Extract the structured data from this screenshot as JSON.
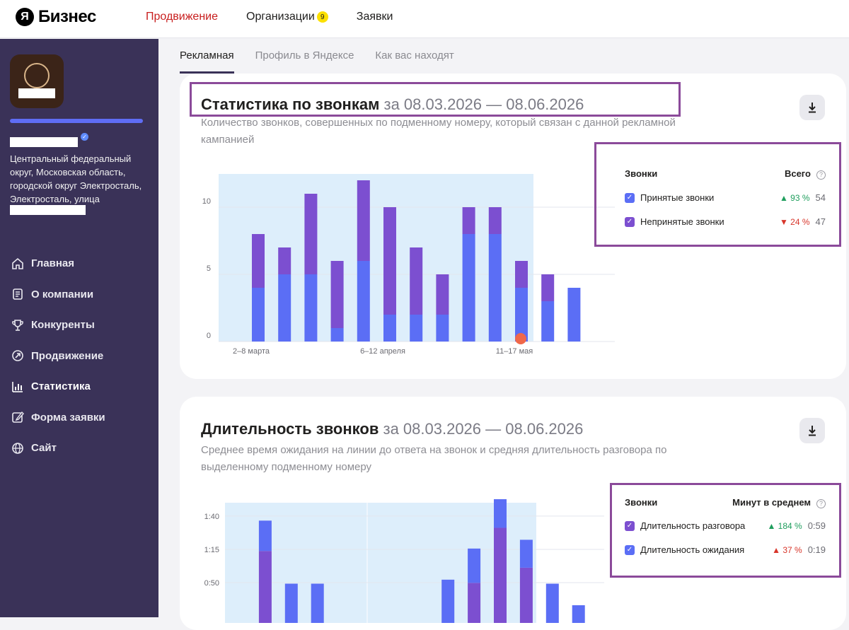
{
  "header": {
    "logo_letter": "Я",
    "logo_text": "Бизнес",
    "nav": [
      {
        "label": "Продвижение",
        "active": true
      },
      {
        "label": "Организации",
        "badge": "9"
      },
      {
        "label": "Заявки"
      }
    ]
  },
  "sidebar": {
    "address": "Центральный федеральный округ, Московская область, городской округ Электросталь, Электросталь, улица",
    "menu": [
      {
        "label": "Главная",
        "icon": "home-icon"
      },
      {
        "label": "О компании",
        "icon": "document-icon"
      },
      {
        "label": "Конкуренты",
        "icon": "trophy-icon"
      },
      {
        "label": "Продвижение",
        "icon": "promotion-icon"
      },
      {
        "label": "Статистика",
        "icon": "chart-icon",
        "active": true
      },
      {
        "label": "Форма заявки",
        "icon": "form-icon"
      },
      {
        "label": "Сайт",
        "icon": "globe-icon"
      }
    ]
  },
  "tabs": [
    {
      "label": "Рекламная",
      "active": true
    },
    {
      "label": "Профиль в Яндексе"
    },
    {
      "label": "Как вас находят"
    }
  ],
  "calls_card": {
    "title": "Статистика по звонкам",
    "period": "за 08.03.2026 — 08.06.2026",
    "description": "Количество звонков, совершенных по подменному номеру, который связан с данной рекламной кампанией",
    "legend_header": "Звонки",
    "legend_total_header": "Всего",
    "legend": [
      {
        "label": "Принятые звонки",
        "change": "▲ 93 %",
        "total": "54",
        "color": "#5b6ef5"
      },
      {
        "label": "Непринятые звонки",
        "change": "▼ 24 %",
        "total": "47",
        "color": "#7c4fd0"
      }
    ]
  },
  "duration_card": {
    "title": "Длительность звонков",
    "period": "за 08.03.2026 — 08.06.2026",
    "description": "Среднее время ожидания на линии до ответа на звонок и средняя длительность разговора по выделенному подменному номеру",
    "legend_header": "Звонки",
    "legend_total_header": "Минут в среднем",
    "legend": [
      {
        "label": "Длительность разговора",
        "change": "▲ 184 %",
        "total": "0:59",
        "color": "#7c4fd0"
      },
      {
        "label": "Длительность ожидания",
        "change": "▲ 37 %",
        "total": "0:19",
        "color": "#5b6ef5"
      }
    ]
  },
  "colors": {
    "accepted": "#5b6ef5",
    "missed": "#7c4fd0",
    "highlight": "#8b4a9a",
    "plot_bg": "#ddeefb"
  },
  "chart_data": [
    {
      "type": "bar",
      "stacked": true,
      "categories": [
        "2–8 марта",
        "",
        "",
        "",
        "",
        "6–12 апреля",
        "",
        "",
        "",
        "",
        "11–17 мая",
        "",
        "",
        ""
      ],
      "series": [
        {
          "name": "Принятые звонки",
          "values": [
            4,
            5,
            5,
            1,
            6,
            2,
            2,
            2,
            8,
            8,
            4,
            3,
            4,
            null
          ]
        },
        {
          "name": "Непринятые звонки",
          "values": [
            4,
            2,
            6,
            5,
            6,
            8,
            5,
            3,
            2,
            2,
            2,
            2,
            0,
            null
          ]
        }
      ],
      "yticks": [
        "0",
        "5",
        "10"
      ],
      "ylim": [
        0,
        12
      ],
      "xtick_labels": [
        {
          "index": 0,
          "label": "2–8 марта"
        },
        {
          "index": 5,
          "label": "6–12 апреля"
        },
        {
          "index": 10,
          "label": "11–17 мая"
        }
      ]
    },
    {
      "type": "bar",
      "stacked": true,
      "series": [
        {
          "name": "Длительность ожидания",
          "values": [
            0.0,
            0.38,
            0.0,
            0.0,
            0.0,
            0.0,
            0.0,
            0.0,
            0.0,
            0.43,
            0.43,
            0.35,
            0.0,
            0.0
          ]
        },
        {
          "name": "Длительность разговора",
          "values": [
            0.0,
            1.23,
            0.82,
            0.82,
            0.0,
            0.0,
            0.0,
            0.0,
            0.87,
            0.83,
            1.52,
            1.02,
            0.82,
            0.55
          ]
        }
      ],
      "yticks": [
        "0:50",
        "1:15",
        "1:40"
      ]
    }
  ]
}
